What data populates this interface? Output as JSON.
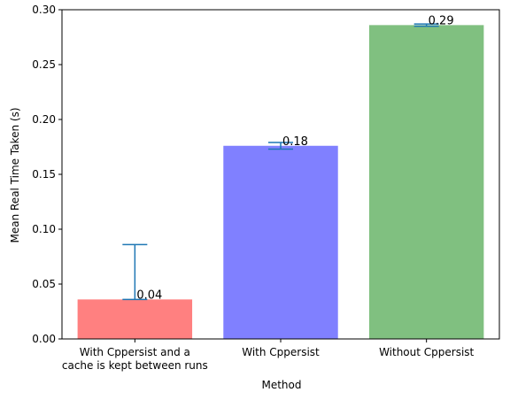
{
  "chart_data": {
    "type": "bar",
    "categories": [
      [
        "With Cppersist and a",
        "cache is kept between runs"
      ],
      [
        "With Cppersist"
      ],
      [
        "Without Cppersist"
      ]
    ],
    "values": [
      0.036,
      0.176,
      0.286
    ],
    "error_low": [
      0.036,
      0.173,
      0.285
    ],
    "error_high": [
      0.086,
      0.179,
      0.287
    ],
    "data_labels": [
      "0.04",
      "0.18",
      "0.29"
    ],
    "colors": [
      "#ff8080",
      "#8080ff",
      "#80c080"
    ],
    "error_color": "#1f77b4",
    "title": "",
    "xlabel": "Method",
    "ylabel": "Mean Real Time Taken (s)",
    "ylim": [
      0,
      0.3
    ],
    "yticks": [
      0.0,
      0.05,
      0.1,
      0.15,
      0.2,
      0.25,
      0.3
    ],
    "ytick_labels": [
      "0.00",
      "0.05",
      "0.10",
      "0.15",
      "0.20",
      "0.25",
      "0.30"
    ],
    "grid": false,
    "legend": "none"
  }
}
